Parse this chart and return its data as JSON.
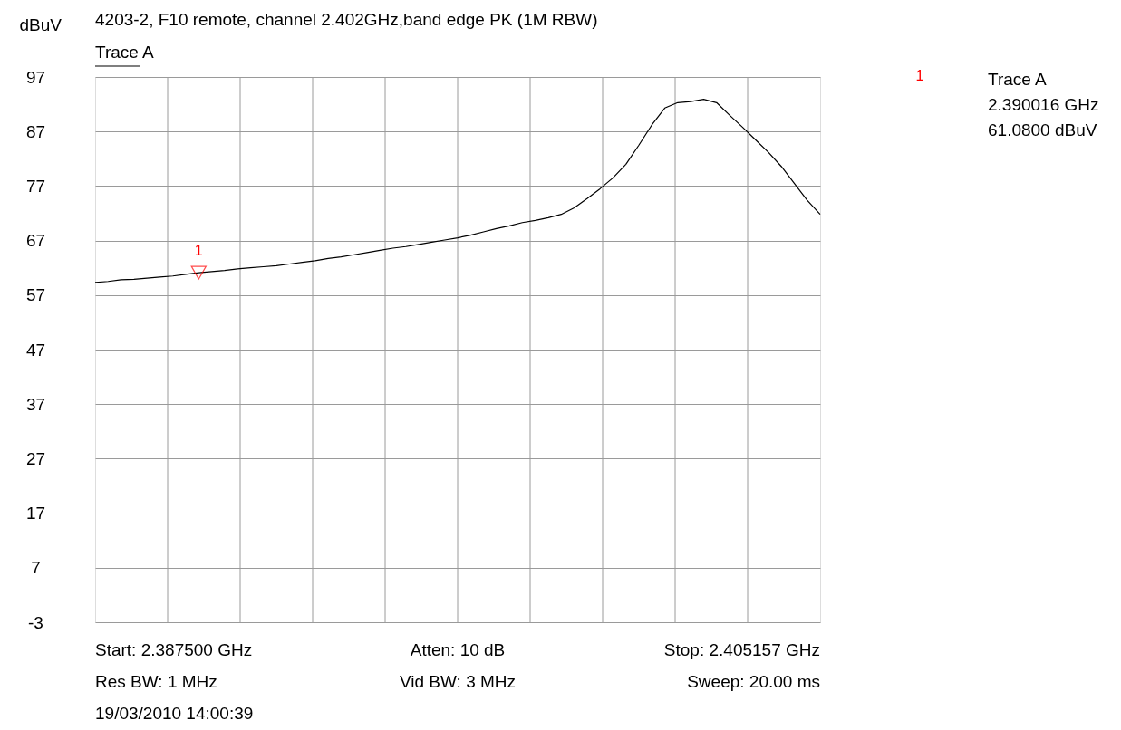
{
  "chart_data": {
    "type": "line",
    "title": "4203-2, F10 remote, channel 2.402GHz,band edge PK (1M RBW)",
    "ylabel": "dBuV",
    "categories": [
      null,
      null,
      null,
      null,
      null,
      null,
      null,
      null,
      null,
      null,
      null,
      null,
      null,
      null,
      null,
      null,
      null,
      null,
      null,
      null,
      null,
      null,
      null,
      null,
      null,
      null,
      null,
      null,
      null,
      null,
      null,
      null,
      null,
      null,
      null,
      null,
      null,
      null,
      null,
      null,
      null,
      null,
      null,
      null,
      null,
      null,
      null,
      null,
      null,
      null,
      null,
      null,
      null,
      null,
      null,
      null,
      null
    ],
    "series": [
      {
        "name": "Trace A",
        "color": "#000000",
        "values": [
          59.3,
          59.5,
          59.8,
          59.9,
          60.1,
          60.3,
          60.5,
          60.8,
          61.1,
          61.3,
          61.5,
          61.8,
          62.0,
          62.2,
          62.4,
          62.7,
          63.0,
          63.3,
          63.7,
          64.0,
          64.4,
          64.8,
          65.2,
          65.6,
          65.9,
          66.3,
          66.7,
          67.1,
          67.5,
          68.0,
          68.6,
          69.2,
          69.7,
          70.3,
          70.7,
          71.2,
          71.8,
          73.0,
          74.7,
          76.5,
          78.5,
          81.0,
          84.5,
          88.2,
          91.3,
          92.3,
          92.5,
          92.9,
          92.3,
          90.0,
          87.8,
          85.5,
          83.2,
          80.6,
          77.5,
          74.4,
          71.8
        ]
      },
      {
        "type": "scatter",
        "name": "1",
        "marker": "triangle",
        "color": "#ff0000",
        "values": [
          null,
          null,
          null,
          null,
          null,
          null,
          null,
          null,
          61.1,
          null,
          null,
          null,
          null,
          null,
          null,
          null,
          null,
          null,
          null,
          null,
          null,
          null,
          null,
          null,
          null,
          null,
          null,
          null,
          null,
          null,
          null,
          null,
          null,
          null,
          null,
          null,
          null,
          null,
          null,
          null,
          null,
          null,
          null,
          null,
          null,
          null,
          null,
          null,
          null,
          null,
          null,
          null,
          null,
          null,
          null,
          null,
          null
        ]
      }
    ],
    "ylim": [
      -3,
      97
    ],
    "yticks": [
      -3,
      7,
      17,
      27,
      37,
      47,
      57,
      67,
      77,
      87,
      97
    ],
    "grid": true,
    "legend": "top left",
    "annotations": [
      "1",
      "Trace A",
      "2.390016 GHz",
      "61.0800 dBuV",
      "Start: 2.387500 GHz",
      "Atten: 10 dB",
      "Stop: 2.405157 GHz",
      "Res BW: 1 MHz",
      "Vid BW: 3 MHz",
      "Sweep: 20.00 ms",
      "19/03/2010 14:00:39"
    ]
  }
}
